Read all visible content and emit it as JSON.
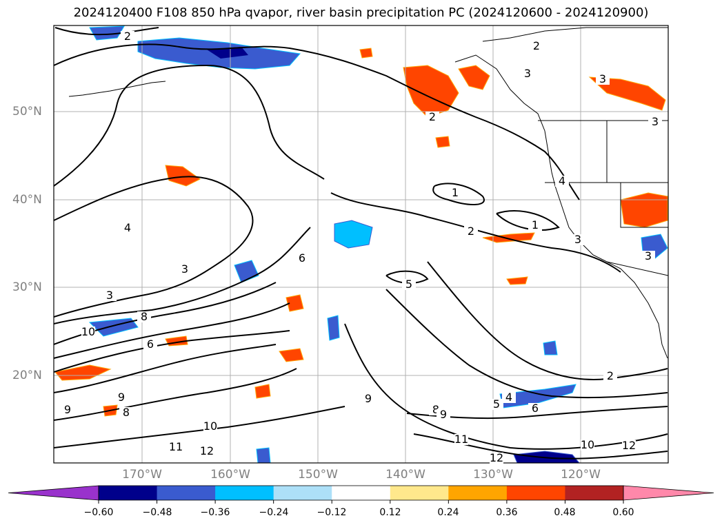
{
  "title": "2024120400 F108 850 hPa qvapor, river basin precipitation PC (2024120600 - 2024120900)",
  "lat_labels": [
    "50°N",
    "40°N",
    "30°N",
    "20°N"
  ],
  "lon_labels": [
    "170°W",
    "160°W",
    "150°W",
    "140°W",
    "130°W",
    "120°W"
  ],
  "colorbar": {
    "tick_labels": [
      "−0.60",
      "−0.48",
      "−0.36",
      "−0.24",
      "−0.12",
      "0.12",
      "0.24",
      "0.36",
      "0.48",
      "0.60"
    ],
    "colors": [
      "#9932CC",
      "#00008B",
      "#3A5BCF",
      "#00BFFF",
      "#ADE0F8",
      "#FFFFFF",
      "#FFE88C",
      "#FFA500",
      "#FF4500",
      "#B22222",
      "#FF88AA"
    ]
  },
  "contour_labels": [
    "1",
    "1",
    "2",
    "2",
    "2",
    "2",
    "2",
    "3",
    "3",
    "3",
    "3",
    "3",
    "3",
    "3",
    "4",
    "4",
    "4",
    "5",
    "5",
    "6",
    "6",
    "6",
    "8",
    "8",
    "8",
    "9",
    "9",
    "9",
    "9",
    "10",
    "10",
    "10",
    "11",
    "11",
    "12",
    "12",
    "12"
  ],
  "icon": "colorbar-extend-arrows"
}
